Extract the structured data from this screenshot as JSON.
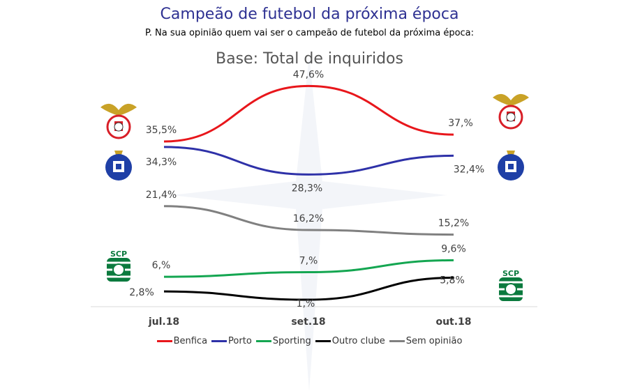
{
  "header": {
    "title": "Campeão de futebol da próxima época",
    "subtitle": "P. Na sua opinião quem vai ser o campeão de futebol da próxima época:",
    "base": "Base: Total de inquiridos"
  },
  "chart_data": {
    "type": "line",
    "categories": [
      "jul.18",
      "set.18",
      "out.18"
    ],
    "series": [
      {
        "name": "Benfica",
        "color": "#e8161b",
        "values": [
          35.5,
          47.6,
          37.0
        ],
        "labels": [
          "35,5%",
          "47,6%",
          "37,%"
        ]
      },
      {
        "name": "Porto",
        "color": "#2e31a8",
        "values": [
          34.3,
          28.3,
          32.4
        ],
        "labels": [
          "34,3%",
          "28,3%",
          "32,4%"
        ]
      },
      {
        "name": "Sporting",
        "color": "#14a651",
        "values": [
          6.0,
          7.0,
          9.6
        ],
        "labels": [
          "6,%",
          "7,%",
          "9,6%"
        ]
      },
      {
        "name": "Outro clube",
        "color": "#000000",
        "values": [
          2.8,
          1.0,
          5.8
        ],
        "labels": [
          "2,8%",
          "1,%",
          "5,8%"
        ]
      },
      {
        "name": "Sem opinião",
        "color": "#808080",
        "values": [
          21.4,
          16.2,
          15.2
        ],
        "labels": [
          "21,4%",
          "16,2%",
          "15,2%"
        ]
      }
    ],
    "legend_position": "bottom",
    "grid": false
  },
  "logos": [
    {
      "name": "benfica-logo",
      "colors": {
        "primary": "#d81e27",
        "gold": "#d4a017"
      }
    },
    {
      "name": "porto-logo",
      "colors": {
        "primary": "#1f3fa6",
        "gold": "#d4a017"
      }
    },
    {
      "name": "sporting-logo",
      "colors": {
        "primary": "#0b7a3e",
        "text": "SCP"
      }
    }
  ]
}
